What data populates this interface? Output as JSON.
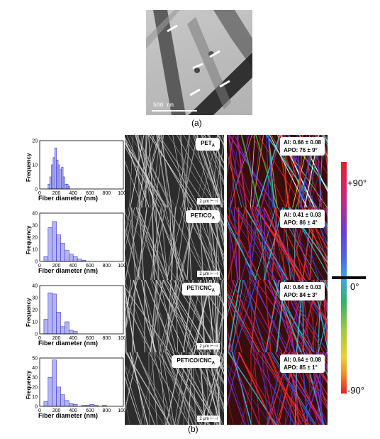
{
  "panel_a": {
    "scale_bar_label": "500 nm",
    "caption": "(a)"
  },
  "panel_b_caption": "(b)",
  "histogram_axes": {
    "xlabel": "Fiber diameter (nm)",
    "ylabel": "Frequency"
  },
  "samples": [
    {
      "name": "PET",
      "subscript": "A",
      "sem_scale": "2 μm",
      "ai": "AI: 0.66 ± 0.08",
      "apo": "APO: 76 ± 9°",
      "hist_ymax": 20,
      "hist_yticks": [
        "0",
        "10",
        "20"
      ],
      "hist_xticks": [
        "0",
        "200",
        "400",
        "600",
        "800",
        "1000"
      ]
    },
    {
      "name": "PET/CO",
      "subscript": "A",
      "sem_scale": "2 μm",
      "ai": "AI: 0.41 ± 0.03",
      "apo": "APO: 86 ± 4°",
      "hist_ymax": 40,
      "hist_yticks": [
        "0",
        "10",
        "20",
        "30",
        "40"
      ],
      "hist_xticks": [
        "0",
        "200",
        "400",
        "600",
        "800",
        "1000"
      ]
    },
    {
      "name": "PET/CNC",
      "subscript": "A",
      "sem_scale": "2 μm",
      "ai": "AI: 0.64 ± 0.03",
      "apo": "APO: 84 ± 3°",
      "hist_ymax": 40,
      "hist_yticks": [
        "0",
        "10",
        "20",
        "30",
        "40"
      ],
      "hist_xticks": [
        "0",
        "200",
        "400",
        "600",
        "800",
        "1000"
      ]
    },
    {
      "name": "PET/CO/CNC",
      "subscript": "A",
      "sem_scale": "2 μm",
      "ai": "AI: 0.64 ± 0.08",
      "apo": "APO: 85 ± 1°",
      "hist_ymax": 50,
      "hist_yticks": [
        "0",
        "10",
        "20",
        "30",
        "40",
        "50"
      ],
      "hist_xticks": [
        "0",
        "200",
        "400",
        "600",
        "800",
        "1000"
      ]
    }
  ],
  "colorbar": {
    "top_label": "+90°",
    "mid_label": "0°",
    "bottom_label": "-90°"
  },
  "chart_data": [
    {
      "type": "bar",
      "xlabel": "Fiber diameter (nm)",
      "ylabel": "Frequency",
      "xlim": [
        0,
        1000
      ],
      "ylim": [
        0,
        20
      ],
      "bin_width": 20,
      "bin_starts": [
        100,
        120,
        140,
        160,
        180,
        200,
        220,
        240,
        260,
        280,
        300,
        320,
        340
      ],
      "values": [
        2,
        5,
        10,
        13,
        17,
        12,
        10,
        8,
        9,
        5,
        2,
        2,
        1
      ]
    },
    {
      "type": "bar",
      "xlabel": "Fiber diameter (nm)",
      "ylabel": "Frequency",
      "xlim": [
        0,
        1000
      ],
      "ylim": [
        0,
        40
      ],
      "bin_width": 50,
      "bin_starts": [
        50,
        100,
        150,
        200,
        250,
        300,
        350,
        400,
        450,
        500
      ],
      "values": [
        4,
        28,
        33,
        22,
        15,
        9,
        6,
        4,
        2,
        1
      ]
    },
    {
      "type": "bar",
      "xlabel": "Fiber diameter (nm)",
      "ylabel": "Frequency",
      "xlim": [
        0,
        1000
      ],
      "ylim": [
        0,
        40
      ],
      "bin_width": 50,
      "bin_starts": [
        50,
        100,
        150,
        200,
        250,
        300,
        350,
        400
      ],
      "values": [
        12,
        34,
        33,
        18,
        6,
        10,
        3,
        2
      ]
    },
    {
      "type": "bar",
      "xlabel": "Fiber diameter (nm)",
      "ylabel": "Frequency",
      "xlim": [
        0,
        1000
      ],
      "ylim": [
        0,
        50
      ],
      "bin_width": 50,
      "bin_starts": [
        50,
        100,
        150,
        200,
        250,
        300,
        350,
        400,
        450,
        500,
        550,
        600,
        650,
        700,
        750
      ],
      "values": [
        5,
        30,
        48,
        20,
        12,
        6,
        3,
        2,
        0,
        1,
        1,
        2,
        1,
        0,
        1
      ]
    }
  ]
}
